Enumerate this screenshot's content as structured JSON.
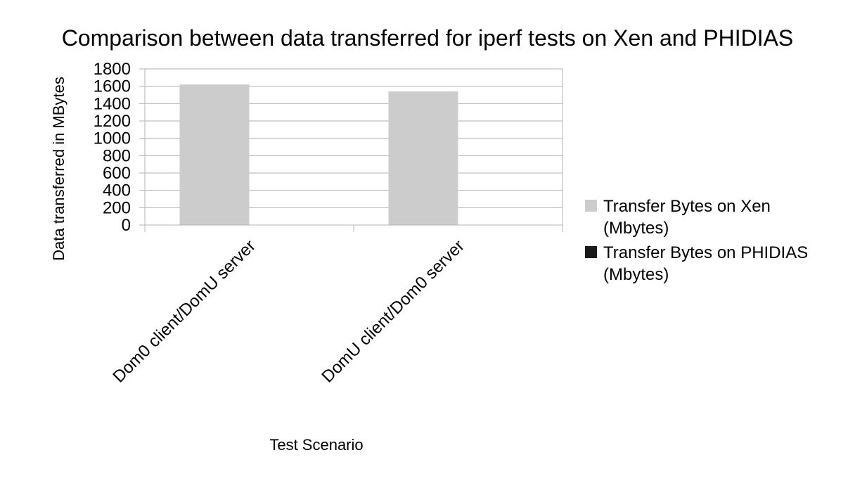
{
  "chart_data": {
    "type": "bar",
    "title": "Comparison between data transferred for iperf tests on Xen and PHIDIAS",
    "xlabel": "Test Scenario",
    "ylabel": "Data transferred in MBytes",
    "categories": [
      "Dom0 client/DomU server",
      "DomU client/Dom0 server"
    ],
    "series": [
      {
        "name": "Transfer Bytes on Xen (Mbytes)",
        "name_lines": [
          "Transfer Bytes on Xen",
          "(Mbytes)"
        ],
        "color": "#cccccc",
        "values": [
          1620,
          1540
        ]
      },
      {
        "name": "Transfer Bytes on PHIDIAS (Mbytes)",
        "name_lines": [
          "Transfer Bytes on PHIDIAS",
          "(Mbytes)"
        ],
        "color": "#1a1a1a",
        "values": [
          0,
          0
        ]
      }
    ],
    "ylim": [
      0,
      1800
    ],
    "yticks": [
      "0",
      "200",
      "400",
      "600",
      "800",
      "1000",
      "1200",
      "1400",
      "1600",
      "1800"
    ],
    "grid": true,
    "legend": "right"
  }
}
